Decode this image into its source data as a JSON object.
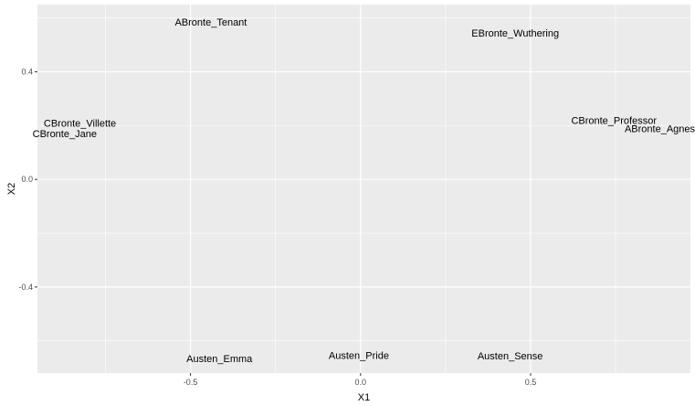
{
  "chart_data": {
    "type": "scatter",
    "xlabel": "X1",
    "ylabel": "X2",
    "xlim": [
      -0.95,
      0.97
    ],
    "ylim": [
      -0.72,
      0.65
    ],
    "x_ticks": [
      -0.5,
      0.0,
      0.5
    ],
    "y_ticks": [
      -0.4,
      0.0,
      0.4
    ],
    "x_tick_labels": [
      "-0.5",
      "0.0",
      "0.5"
    ],
    "y_tick_labels": [
      "-0.4",
      "0.0",
      "0.4"
    ],
    "x_minor": [
      -0.75,
      -0.25,
      0.25,
      0.75
    ],
    "y_minor": [
      -0.6,
      -0.2,
      0.2,
      0.6
    ],
    "grid": true,
    "panel_background": "#ebebeb",
    "grid_color": "#ffffff",
    "points": [
      {
        "label": "ABronte_Tenant",
        "x": -0.44,
        "y": 0.585
      },
      {
        "label": "EBronte_Wuthering",
        "x": 0.455,
        "y": 0.545
      },
      {
        "label": "CBronte_Villette",
        "x": -0.825,
        "y": 0.21
      },
      {
        "label": "CBronte_Jane",
        "x": -0.87,
        "y": 0.17
      },
      {
        "label": "CBronte_Professor",
        "x": 0.745,
        "y": 0.22
      },
      {
        "label": "ABronte_Agnes",
        "x": 0.88,
        "y": 0.19
      },
      {
        "label": "Austen_Emma",
        "x": -0.415,
        "y": -0.665
      },
      {
        "label": "Austen_Pride",
        "x": -0.005,
        "y": -0.653
      },
      {
        "label": "Austen_Sense",
        "x": 0.44,
        "y": -0.655
      }
    ]
  }
}
